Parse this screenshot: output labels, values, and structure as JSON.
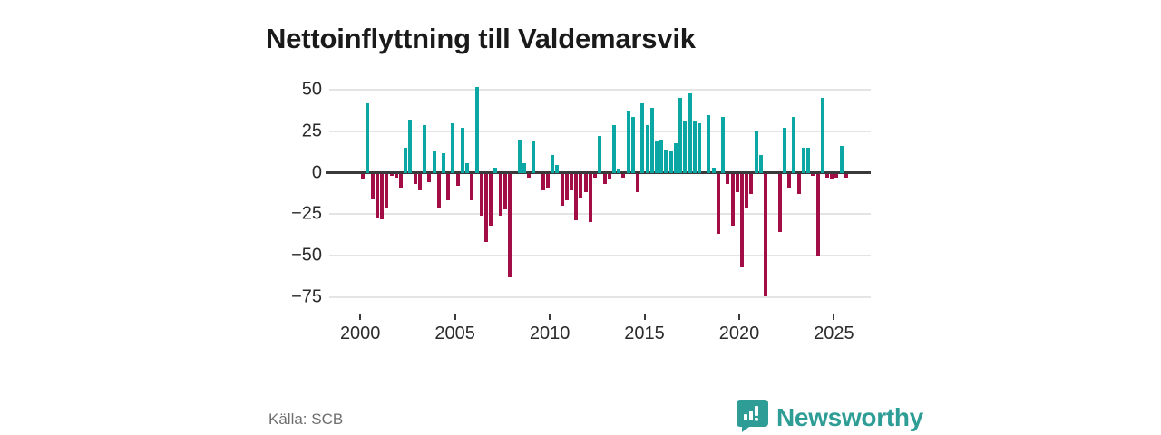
{
  "title": "Nettoinflyttning till Valdemarsvik",
  "source": "Källa: SCB",
  "logo": {
    "text": "Newsworthy",
    "icon": "newsworthy-speech-bubble-bar-chart-icon"
  },
  "colors": {
    "positive_bar": "#0ba7a4",
    "negative_bar": "#a30d45",
    "grid": "#e4e4e4",
    "zero_line": "#3a3a3a",
    "axis_text": "#2b2b2b",
    "title_text": "#1a1a1a",
    "source_text": "#6f6f6f",
    "logo_teal": "#2d9d95",
    "background": "#ffffff"
  },
  "chart_data": {
    "type": "bar",
    "title": "Nettoinflyttning till Valdemarsvik",
    "frequency": "quarterly",
    "start_period": "2000Q1",
    "end_period": "2025Q3",
    "grid": true,
    "ylim": [
      -80,
      55
    ],
    "y_ticks": [
      50,
      25,
      0,
      -25,
      -50,
      -75
    ],
    "y_tick_labels": [
      "50",
      "25",
      "0",
      "−25",
      "−50",
      "−75"
    ],
    "x_ticks": [
      {
        "label": "2000"
      },
      {
        "label": "2005"
      },
      {
        "label": "2010"
      },
      {
        "label": "2015"
      },
      {
        "label": "2020"
      },
      {
        "label": "2025"
      }
    ],
    "values": [
      -3,
      42,
      -15,
      -26,
      -27,
      -20,
      -1,
      -2,
      -8,
      15,
      32,
      -6,
      -10,
      29,
      -5,
      13,
      -20,
      12,
      -16,
      30,
      -7,
      27,
      6,
      -16,
      52,
      -25,
      -41,
      -31,
      3,
      -25,
      -21,
      -62,
      0,
      20,
      6,
      -2,
      19,
      0,
      -10,
      -8,
      11,
      5,
      -19,
      -16,
      -10,
      -28,
      -14,
      -11,
      -29,
      -2,
      22,
      -6,
      -3,
      29,
      2,
      -2,
      37,
      34,
      -11,
      42,
      29,
      39,
      19,
      20,
      14,
      13,
      18,
      45,
      31,
      48,
      31,
      30,
      0,
      35,
      3,
      -36,
      34,
      -6,
      -31,
      -11,
      -56,
      -20,
      -12,
      25,
      11,
      -74,
      0,
      0,
      -35,
      27,
      -8,
      34,
      -12,
      15,
      15,
      -1,
      -49,
      45,
      -2,
      -3,
      -2,
      16,
      -2
    ]
  }
}
